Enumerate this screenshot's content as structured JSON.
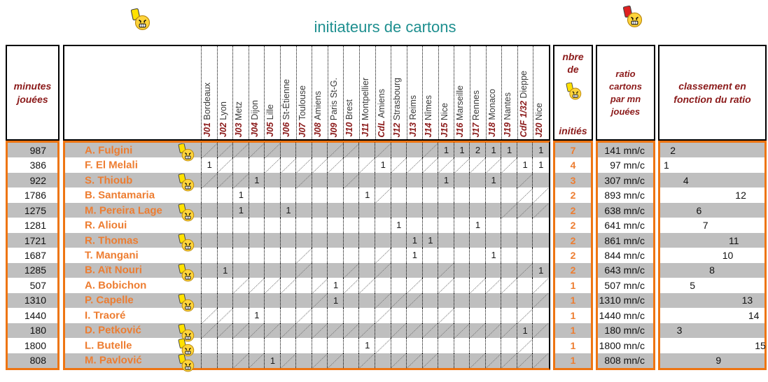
{
  "title": "initiateurs de cartons",
  "icons": {
    "top_left": "yellow-card-angry-smiley",
    "top_right": "red-card-angry-smiley",
    "count_header": "yellow-card-angry-smiley",
    "row_marker": "yellow-card-angry-smiley"
  },
  "colors": {
    "border_orange": "#ee7512",
    "name_orange": "#ed7d31",
    "header_dark_red": "#8b1a1a",
    "title_teal": "#1e8f8f",
    "stripe_gray": "#bfbfbf",
    "card_yellow": "#ffe100",
    "card_red": "#e02020"
  },
  "table": {
    "minutes_header": [
      "minutes",
      "jouées"
    ],
    "count_header": {
      "top": [
        "nbre",
        "de"
      ],
      "bottom": "initiés"
    },
    "ratio_header": [
      "ratio",
      "cartons",
      "par mn",
      "jouées"
    ],
    "rank_header": [
      "classement en",
      "fonction du ratio"
    ],
    "columns": [
      {
        "code": "J01",
        "opponent": "Bordeaux"
      },
      {
        "code": "J02",
        "opponent": "Lyon"
      },
      {
        "code": "J03",
        "opponent": "Metz"
      },
      {
        "code": "J04",
        "opponent": "Dijon"
      },
      {
        "code": "J05",
        "opponent": "Lille"
      },
      {
        "code": "J06",
        "opponent": "St-Étienne"
      },
      {
        "code": "J07",
        "opponent": "Toulouse"
      },
      {
        "code": "J08",
        "opponent": "Amiens"
      },
      {
        "code": "J09",
        "opponent": "Paris St-G."
      },
      {
        "code": "J10",
        "opponent": "Brest"
      },
      {
        "code": "J11",
        "opponent": "Montpellier"
      },
      {
        "code": "CdL",
        "opponent": "Amiens"
      },
      {
        "code": "J12",
        "opponent": "Strasbourg"
      },
      {
        "code": "J13",
        "opponent": "Reims"
      },
      {
        "code": "J14",
        "opponent": "Nîmes"
      },
      {
        "code": "J15",
        "opponent": "Nice"
      },
      {
        "code": "J16",
        "opponent": "Marseille"
      },
      {
        "code": "J17",
        "opponent": "Rennes"
      },
      {
        "code": "J18",
        "opponent": "Monaco"
      },
      {
        "code": "J19",
        "opponent": "Nantes"
      },
      {
        "code": "CdF 1/32",
        "opponent": "Dieppe"
      },
      {
        "code": "J20",
        "opponent": "Nice"
      }
    ],
    "rows": [
      {
        "minutes": "987",
        "name": "A. Fulgini",
        "icon": true,
        "cards": {
          "J15": 1,
          "J16": 1,
          "J17": 2,
          "J18": 1,
          "J19": 1,
          "J20": 1
        },
        "missed": [
          "J01",
          "J02",
          "J03",
          "J04",
          "J05",
          "J09",
          "J10",
          "CdL",
          "J14"
        ],
        "count": "7",
        "ratio": "141 mn/c",
        "rank": 2
      },
      {
        "minutes": "386",
        "name": "F. El Melali",
        "icon": false,
        "cards": {
          "J01": 1,
          "CdL": 1,
          "CdF 1/32": 1,
          "J20": 1
        },
        "missed": [
          "J02",
          "J05",
          "J06",
          "J07",
          "J08",
          "J09",
          "J11",
          "J12",
          "J13",
          "J14",
          "J15",
          "J16",
          "J17",
          "J18",
          "J19"
        ],
        "count": "4",
        "ratio": "97 mn/c",
        "rank": 1
      },
      {
        "minutes": "922",
        "name": "S. Thioub",
        "icon": true,
        "cards": {
          "J04": 1,
          "J15": 1,
          "J18": 1
        },
        "missed": [
          "J01",
          "J02",
          "J03",
          "J07",
          "J10",
          "CdF 1/32"
        ],
        "count": "3",
        "ratio": "307 mn/c",
        "rank": 4
      },
      {
        "minutes": "1786",
        "name": "B. Santamaria",
        "icon": false,
        "cards": {
          "J03": 1,
          "J11": 1
        },
        "missed": [
          "CdL",
          "CdF 1/32",
          "J20"
        ],
        "count": "2",
        "ratio": "893 mn/c",
        "rank": 12
      },
      {
        "minutes": "1275",
        "name": "M. Pereira Lage",
        "icon": true,
        "cards": {
          "J03": 1,
          "J06": 1
        },
        "missed": [
          "J19",
          "CdF 1/32",
          "J20"
        ],
        "count": "2",
        "ratio": "638 mn/c",
        "rank": 6
      },
      {
        "minutes": "1281",
        "name": "R. Alioui",
        "icon": false,
        "cards": {
          "J12": 1,
          "J17": 1
        },
        "missed": [],
        "count": "2",
        "ratio": "641 mn/c",
        "rank": 7
      },
      {
        "minutes": "1721",
        "name": "R. Thomas",
        "icon": true,
        "cards": {
          "J13": 1,
          "J14": 1
        },
        "missed": [],
        "count": "2",
        "ratio": "861 mn/c",
        "rank": 11
      },
      {
        "minutes": "1687",
        "name": "T. Mangani",
        "icon": false,
        "cards": {
          "J13": 1,
          "J18": 1
        },
        "missed": [
          "J07",
          "CdL"
        ],
        "count": "2",
        "ratio": "844 mn/c",
        "rank": 10
      },
      {
        "minutes": "1285",
        "name": "B. Aït Nouri",
        "icon": true,
        "cards": {
          "J02": 1,
          "J20": 1
        },
        "missed": [
          "J07",
          "J10",
          "CdL",
          "J15",
          "CdF 1/32"
        ],
        "count": "2",
        "ratio": "643 mn/c",
        "rank": 8
      },
      {
        "minutes": "507",
        "name": "A. Bobichon",
        "icon": false,
        "cards": {
          "J09": 1
        },
        "missed": [
          "J03",
          "J04",
          "J05",
          "J06",
          "J08",
          "J10",
          "J11",
          "J13",
          "J15",
          "J17",
          "J18",
          "J19",
          "J20"
        ],
        "count": "1",
        "ratio": "507 mn/c",
        "rank": 5
      },
      {
        "minutes": "1310",
        "name": "P. Capelle",
        "icon": true,
        "cards": {
          "J09": 1
        },
        "missed": [
          "J08",
          "CdL",
          "J12",
          "J13",
          "J20"
        ],
        "count": "1",
        "ratio": "1310 mn/c",
        "rank": 13
      },
      {
        "minutes": "1440",
        "name": "I. Traoré",
        "icon": false,
        "cards": {
          "J04": 1
        },
        "missed": [
          "J01",
          "J02",
          "J07",
          "CdL",
          "J15",
          "CdF 1/32"
        ],
        "count": "1",
        "ratio": "1440 mn/c",
        "rank": 14
      },
      {
        "minutes": "180",
        "name": "D. Petković",
        "icon": true,
        "cards": {
          "CdF 1/32": 1
        },
        "missed": [
          "J01",
          "J02",
          "J03",
          "J04",
          "J05",
          "J06",
          "J07",
          "J08",
          "J09",
          "J10",
          "J11",
          "J12",
          "J13",
          "J14",
          "J15",
          "J16",
          "J17",
          "J18",
          "J19",
          "J20"
        ],
        "count": "1",
        "ratio": "180 mn/c",
        "rank": 3
      },
      {
        "minutes": "1800",
        "name": "L. Butelle",
        "icon": true,
        "cards": {
          "J11": 1
        },
        "missed": [
          "CdL",
          "CdF 1/32"
        ],
        "count": "1",
        "ratio": "1800 mn/c",
        "rank": 15
      },
      {
        "minutes": "808",
        "name": "M. Pavlović",
        "icon": true,
        "cards": {
          "J05": 1
        },
        "missed": [
          "J03",
          "J04",
          "J06",
          "J08",
          "J09",
          "J11",
          "J12",
          "J13",
          "J14",
          "J17",
          "J18",
          "J19",
          "CdF 1/32",
          "J20"
        ],
        "count": "1",
        "ratio": "808 mn/c",
        "rank": 9
      }
    ]
  }
}
